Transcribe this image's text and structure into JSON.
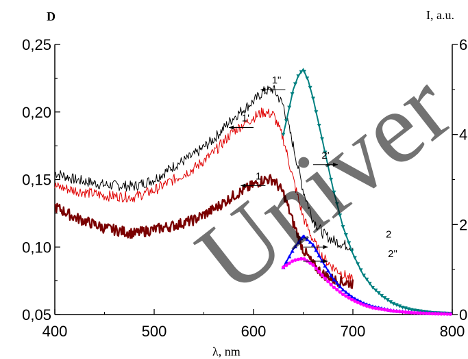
{
  "chart_data": {
    "type": "line",
    "y_left_label": "D",
    "y_right_label": "I, a.u.",
    "xlabel": "λ, nm",
    "xlim": [
      400,
      800
    ],
    "ylim_left": [
      0.05,
      0.25
    ],
    "ylim_right": [
      0,
      6
    ],
    "x_ticks": [
      400,
      500,
      600,
      700,
      800
    ],
    "x_tick_labels": [
      "400",
      "500",
      "600",
      "700",
      "800"
    ],
    "y_left_ticks": [
      0.05,
      0.1,
      0.15,
      0.2,
      0.25
    ],
    "y_left_tick_labels": [
      "0,05",
      "0,10",
      "0,15",
      "0,20",
      "0,25"
    ],
    "y_right_ticks": [
      0,
      2,
      4,
      6
    ],
    "y_right_tick_labels": [
      "0",
      "2",
      "4",
      "6"
    ],
    "grid": false,
    "watermark": "Univer",
    "absorption_series": [
      {
        "name": "1\"",
        "color": "#000000",
        "width": 1,
        "noise": 0.004,
        "x": [
          400,
          420,
          450,
          480,
          500,
          520,
          540,
          560,
          580,
          600,
          610,
          620,
          630,
          640,
          650,
          660,
          670,
          680,
          690,
          700
        ],
        "y": [
          0.155,
          0.15,
          0.146,
          0.145,
          0.15,
          0.16,
          0.168,
          0.18,
          0.196,
          0.208,
          0.215,
          0.217,
          0.205,
          0.175,
          0.142,
          0.12,
          0.11,
          0.105,
          0.102,
          0.1
        ]
      },
      {
        "name": "1'",
        "color": "#e00000",
        "width": 1,
        "noise": 0.004,
        "x": [
          400,
          420,
          450,
          480,
          500,
          520,
          540,
          560,
          580,
          600,
          610,
          620,
          630,
          640,
          650,
          660,
          670,
          680,
          690,
          700
        ],
        "y": [
          0.145,
          0.142,
          0.138,
          0.137,
          0.142,
          0.15,
          0.158,
          0.17,
          0.186,
          0.196,
          0.2,
          0.198,
          0.18,
          0.15,
          0.122,
          0.105,
          0.092,
          0.085,
          0.08,
          0.075
        ]
      },
      {
        "name": "1",
        "color": "#7a0000",
        "width": 2.4,
        "noise": 0.004,
        "x": [
          400,
          420,
          450,
          480,
          500,
          520,
          540,
          560,
          580,
          600,
          610,
          620,
          630,
          640,
          650,
          660,
          670,
          680,
          690,
          700
        ],
        "y": [
          0.13,
          0.122,
          0.114,
          0.11,
          0.113,
          0.116,
          0.12,
          0.128,
          0.138,
          0.146,
          0.15,
          0.15,
          0.14,
          0.118,
          0.098,
          0.087,
          0.08,
          0.076,
          0.074,
          0.073
        ]
      }
    ],
    "emission_series": [
      {
        "name": "2'",
        "color": "#008080",
        "marker": "v",
        "x": [
          630,
          635,
          640,
          645,
          650,
          655,
          660,
          670,
          680,
          690,
          700,
          710,
          720,
          730,
          740,
          750,
          760,
          780,
          800
        ],
        "y": [
          4.0,
          4.5,
          5.0,
          5.3,
          5.45,
          5.2,
          4.8,
          3.8,
          2.8,
          1.95,
          1.35,
          0.9,
          0.6,
          0.4,
          0.25,
          0.16,
          0.1,
          0.04,
          0.02
        ]
      },
      {
        "name": "2",
        "color": "#0000ff",
        "marker": "^",
        "x": [
          630,
          640,
          650,
          660,
          670,
          680,
          690,
          700,
          710,
          720,
          740,
          760,
          780,
          800
        ],
        "y": [
          1.05,
          1.45,
          1.75,
          1.55,
          1.15,
          0.8,
          0.55,
          0.38,
          0.26,
          0.18,
          0.09,
          0.05,
          0.03,
          0.02
        ]
      },
      {
        "name": "2\"",
        "color": "#ff00ff",
        "marker": "*",
        "x": [
          630,
          640,
          650,
          660,
          670,
          680,
          690,
          700,
          710,
          720,
          740,
          760,
          780,
          800
        ],
        "y": [
          1.05,
          1.2,
          1.25,
          1.1,
          0.85,
          0.62,
          0.45,
          0.32,
          0.22,
          0.15,
          0.08,
          0.04,
          0.02,
          0.01
        ]
      }
    ],
    "annotations": [
      {
        "text": "1\"",
        "arrow": "left",
        "x": 632,
        "y": 0.2165
      },
      {
        "text": "1'",
        "arrow": "left",
        "x": 600,
        "y": 0.1885
      },
      {
        "text": "1",
        "arrow": "left",
        "x": 612,
        "y": 0.1455
      },
      {
        "text": "2'",
        "arrow": "right",
        "x": 660,
        "y": 0.161
      },
      {
        "text": "2",
        "arrow": "right",
        "x": 650,
        "y": 0.1,
        "label_x": 736,
        "label_y": 0.107
      },
      {
        "text": "2\"",
        "arrow": "right",
        "x": 650,
        "y": 0.0895,
        "label_x": 740,
        "label_y": 0.0925
      }
    ]
  }
}
